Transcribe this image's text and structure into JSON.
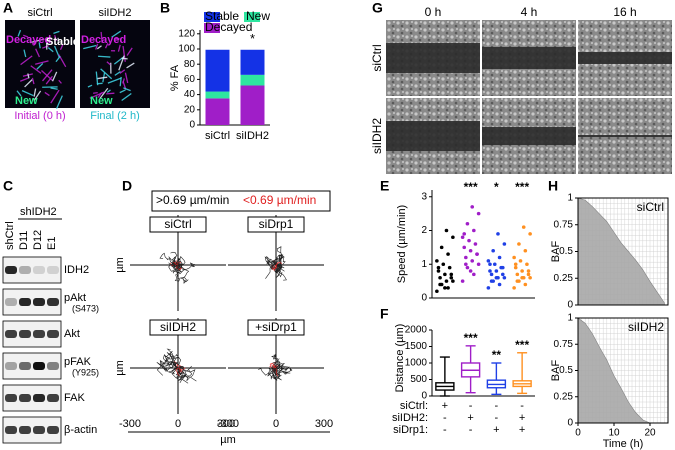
{
  "panel_letters": [
    "A",
    "B",
    "C",
    "D",
    "E",
    "F",
    "G",
    "H"
  ],
  "panel_a": {
    "images": [
      "siCtrl",
      "siIDH2"
    ],
    "decayed": "Decayed",
    "stable": "Stable",
    "new": "New",
    "captions": [
      "Initial (0 h)",
      "Final (2 h)"
    ]
  },
  "panel_c": {
    "group": "shIDH2",
    "lanes": [
      "shCtrl",
      "D11",
      "D12",
      "E1"
    ],
    "bands": [
      {
        "name": "IDH2"
      },
      {
        "name": "pAkt",
        "site": "(S473)"
      },
      {
        "name": "Akt"
      },
      {
        "name": "pFAK",
        "site": "(Y925)"
      },
      {
        "name": "FAK"
      },
      {
        "name": "β-actin"
      }
    ]
  },
  "panel_d": {
    "legend": [
      ">0.69 µm/min",
      "<0.69 µm/min"
    ],
    "plots": [
      "siCtrl",
      "siDrp1",
      "siIDH2",
      "+siDrp1"
    ],
    "ticks": [
      -300,
      0,
      300
    ],
    "axis_label": "µm"
  },
  "panel_g": {
    "times": [
      "0 h",
      "4 h",
      "16 h"
    ],
    "rows": [
      "siCtrl",
      "siIDH2"
    ]
  },
  "chart_data": [
    {
      "type": "bar",
      "stacked": true,
      "ylabel": "% FA",
      "categories": [
        "siCtrl",
        "siIDH2"
      ],
      "series": [
        {
          "name": "Decayed",
          "color": "#a01ec8",
          "values": [
            35,
            52
          ]
        },
        {
          "name": "New",
          "color": "#2ee6a0",
          "values": [
            9,
            14
          ]
        },
        {
          "name": "Stable",
          "color": "#1432e6",
          "values": [
            55,
            33
          ]
        }
      ],
      "annotations": [
        null,
        "*"
      ],
      "ylim": [
        0,
        125
      ],
      "yticks": [
        0,
        20,
        40,
        60,
        80,
        100,
        120
      ]
    },
    {
      "type": "strip",
      "ylabel": "Speed (µm/min)",
      "ylim": [
        0,
        3.2
      ],
      "yticks": [
        0,
        1,
        2,
        3
      ],
      "groups": [
        {
          "color": "#000000",
          "values": [
            0.2,
            0.3,
            0.4,
            0.5,
            0.5,
            0.6,
            0.6,
            0.7,
            0.8,
            0.9,
            1.0,
            1.1,
            1.3,
            1.5,
            1.8,
            2.0,
            0.4,
            0.7,
            0.3,
            0.9
          ]
        },
        {
          "color": "#a01ec8",
          "values": [
            0.5,
            0.7,
            0.9,
            1.0,
            1.1,
            1.2,
            1.3,
            1.4,
            1.5,
            1.6,
            1.7,
            1.8,
            2.0,
            2.2,
            2.5,
            2.7,
            1.0,
            1.3,
            0.8,
            1.9
          ]
        },
        {
          "color": "#2040e6",
          "values": [
            0.3,
            0.4,
            0.5,
            0.6,
            0.6,
            0.7,
            0.7,
            0.8,
            0.8,
            0.9,
            1.0,
            1.1,
            1.2,
            1.4,
            1.6,
            1.9,
            0.5,
            0.9,
            0.6,
            1.0
          ]
        },
        {
          "color": "#ff9020",
          "values": [
            0.3,
            0.4,
            0.5,
            0.6,
            0.6,
            0.7,
            0.7,
            0.8,
            0.9,
            1.0,
            1.1,
            1.2,
            1.4,
            1.6,
            1.9,
            2.1,
            0.5,
            0.8,
            0.6,
            1.0
          ]
        }
      ],
      "annotations": [
        null,
        "***",
        "*",
        "***"
      ]
    },
    {
      "type": "box",
      "ylabel": "Distance (µm)",
      "ylim": [
        0,
        2000
      ],
      "yticks": [
        0,
        500,
        1000,
        1500,
        2000
      ],
      "boxes": [
        {
          "color": "#000000",
          "min": 0,
          "q1": 180,
          "median": 290,
          "q3": 400,
          "max": 1180
        },
        {
          "color": "#a01ec8",
          "min": 100,
          "q1": 580,
          "median": 780,
          "q3": 1000,
          "max": 1520
        },
        {
          "color": "#2040e6",
          "min": 50,
          "q1": 250,
          "median": 350,
          "q3": 480,
          "max": 1000
        },
        {
          "color": "#ff9020",
          "min": 80,
          "q1": 290,
          "median": 370,
          "q3": 460,
          "max": 1310
        }
      ],
      "annotations": [
        null,
        "***",
        "**",
        "***"
      ],
      "conditions": [
        {
          "name": "siCtrl:",
          "signs": [
            "+",
            "-",
            "-",
            "-"
          ]
        },
        {
          "name": "siIDH2:",
          "signs": [
            "-",
            "+",
            "-",
            "+"
          ]
        },
        {
          "name": "siDrp1:",
          "signs": [
            "-",
            "-",
            "+",
            "+"
          ]
        }
      ]
    },
    {
      "type": "area",
      "title": "siCtrl",
      "ylabel": "BAF",
      "color": "#a8a8a8",
      "x": [
        0,
        2,
        4,
        6,
        8,
        10,
        12,
        14,
        16,
        18,
        20,
        22,
        24
      ],
      "values": [
        1,
        0.98,
        0.92,
        0.85,
        0.78,
        0.68,
        0.58,
        0.5,
        0.42,
        0.33,
        0.22,
        0.12,
        0.02
      ],
      "xlim": [
        0,
        25
      ],
      "ylim": [
        0,
        1
      ],
      "yticks": [
        0,
        0.25,
        0.5,
        0.75,
        1
      ]
    },
    {
      "type": "area",
      "title": "siIDH2",
      "ylabel": "BAF",
      "xlabel": "Time (h)",
      "color": "#a8a8a8",
      "x": [
        0,
        2,
        4,
        6,
        8,
        10,
        12,
        14,
        16,
        18,
        20,
        22,
        24
      ],
      "values": [
        1,
        0.95,
        0.85,
        0.72,
        0.6,
        0.45,
        0.33,
        0.2,
        0.1,
        0.03,
        0,
        0,
        0
      ],
      "xlim": [
        0,
        25
      ],
      "ylim": [
        0,
        1
      ],
      "xticks": [
        0,
        10,
        20
      ],
      "yticks": [
        0,
        0.25,
        0.5,
        0.75,
        1
      ]
    }
  ]
}
